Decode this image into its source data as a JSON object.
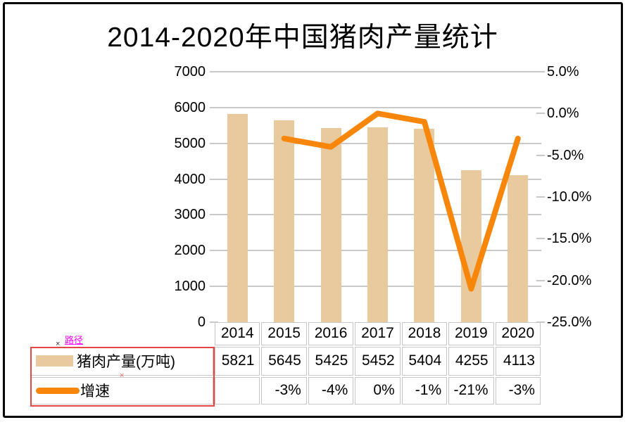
{
  "window": {
    "background": "#FFFFFF",
    "border_color": "#000000"
  },
  "chart_data": {
    "type": "bar",
    "combo": "bar+line",
    "title": "2014-2020年中国猪肉产量统计",
    "categories": [
      "2014",
      "2015",
      "2016",
      "2017",
      "2018",
      "2019",
      "2020"
    ],
    "series": [
      {
        "name": "猪肉产量(万吨)",
        "type": "bar",
        "axis": "left",
        "color": "#E9CA9F",
        "values": [
          5821,
          5645,
          5425,
          5452,
          5404,
          4255,
          4113
        ],
        "labels": [
          "5821",
          "5645",
          "5425",
          "5452",
          "5404",
          "4255",
          "4113"
        ]
      },
      {
        "name": "增速",
        "type": "line",
        "axis": "right",
        "color": "#F7860A",
        "values": [
          null,
          -3,
          -4,
          0,
          -1,
          -21,
          -3
        ],
        "labels": [
          "",
          "-3%",
          "-4%",
          "0%",
          "-1%",
          "-21%",
          "-3%"
        ]
      }
    ],
    "left_axis": {
      "min": 0,
      "max": 7000,
      "tick_labels": [
        "7000",
        "6000",
        "5000",
        "4000",
        "3000",
        "2000",
        "1000",
        "0"
      ]
    },
    "right_axis": {
      "min": -25,
      "max": 5,
      "tick_labels": [
        "5.0%",
        "0.0%",
        "-5.0%",
        "-10.0%",
        "-15.0%",
        "-20.0%",
        "-25.0%"
      ]
    },
    "grid": true,
    "legend_position": "bottom-left-table",
    "colors": {
      "gridline": "#C9C9C9",
      "table_border": "#C6C6C6"
    }
  },
  "annotations": {
    "path_label": "路径",
    "path_label_color": "#FF00FF",
    "box_color": "#E64545",
    "marker1": "×",
    "marker2": "×",
    "marker1_color": "#333333",
    "marker2_color": "#F26A6A"
  }
}
